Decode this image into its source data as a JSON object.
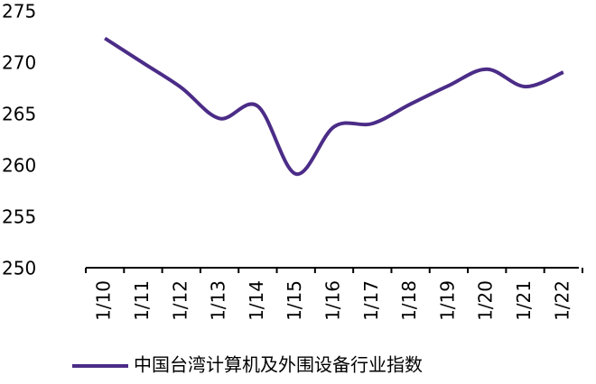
{
  "chart_data": {
    "type": "line",
    "categories": [
      "1/10",
      "1/11",
      "1/12",
      "1/13",
      "1/14",
      "1/15",
      "1/16",
      "1/17",
      "1/18",
      "1/19",
      "1/20",
      "1/21",
      "1/22"
    ],
    "series": [
      {
        "name": "中国台湾计算机及外围设备行业指数",
        "color": "#4b2c87",
        "values": [
          272.5,
          270.1,
          267.7,
          264.7,
          265.9,
          259.3,
          263.9,
          264.2,
          266.1,
          267.9,
          269.5,
          267.8,
          269.2
        ]
      }
    ],
    "ylim": [
      250,
      275
    ],
    "yticks": [
      250,
      255,
      260,
      265,
      270,
      275
    ],
    "grid": false
  }
}
